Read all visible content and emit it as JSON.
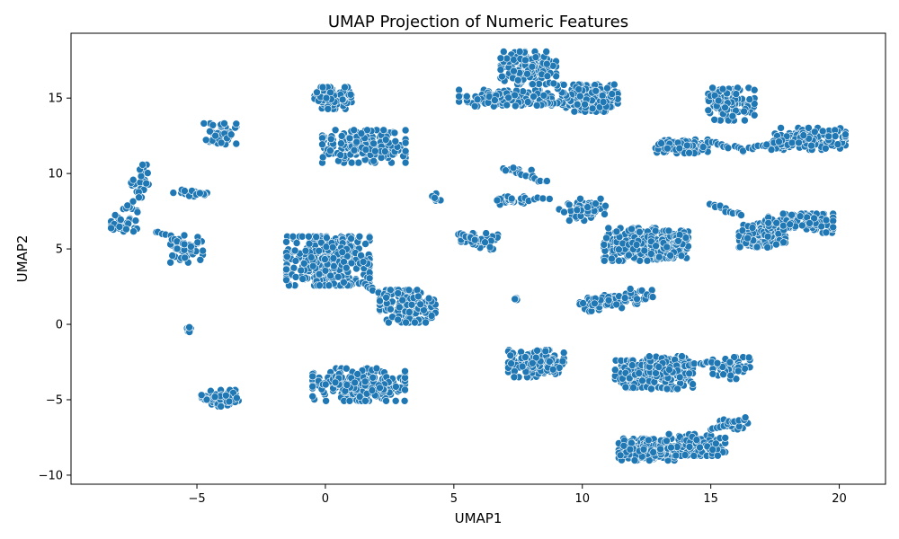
{
  "chart_data": {
    "type": "scatter",
    "title": "UMAP Projection of Numeric Features",
    "xlabel": "UMAP1",
    "ylabel": "UMAP2",
    "xlim": [
      -9.9,
      21.8
    ],
    "ylim": [
      -10.6,
      19.3
    ],
    "x_ticks": [
      -5,
      0,
      5,
      10,
      15,
      20
    ],
    "y_ticks": [
      -10,
      -5,
      0,
      5,
      10,
      15
    ],
    "x_tick_labels": [
      "−5",
      "0",
      "5",
      "10",
      "15",
      "20"
    ],
    "y_tick_labels": [
      "−10",
      "−5",
      "0",
      "5",
      "10",
      "15"
    ],
    "grid": false,
    "marker_color": "#1f77b4",
    "marker_edge_color": "#ffffff",
    "clusters": [
      {
        "center": [
          -7.8,
          6.7
        ],
        "spread": [
          0.3,
          0.3
        ],
        "n": 25
      },
      {
        "center": [
          -7.2,
          9.5
        ],
        "spread": [
          0.2,
          0.6
        ],
        "n": 25
      },
      {
        "center": [
          -7.5,
          7.8
        ],
        "spread": [
          0.3,
          0.2
        ],
        "n": 10
      },
      {
        "center": [
          -5.2,
          8.7
        ],
        "spread": [
          0.4,
          0.12
        ],
        "n": 25
      },
      {
        "center": [
          -5.4,
          5.0
        ],
        "spread": [
          0.35,
          0.5
        ],
        "n": 50
      },
      {
        "center": [
          -5.3,
          -0.4
        ],
        "spread": [
          0.08,
          0.12
        ],
        "n": 8
      },
      {
        "center": [
          -4.1,
          -4.9
        ],
        "spread": [
          0.4,
          0.3
        ],
        "n": 70
      },
      {
        "center": [
          -4.1,
          12.6
        ],
        "spread": [
          0.35,
          0.4
        ],
        "n": 50
      },
      {
        "center": [
          0.1,
          4.2
        ],
        "spread": [
          0.9,
          0.9
        ],
        "n": 400
      },
      {
        "center": [
          3.2,
          1.2
        ],
        "spread": [
          0.6,
          0.6
        ],
        "n": 150
      },
      {
        "center": [
          0.3,
          15.0
        ],
        "spread": [
          0.4,
          0.4
        ],
        "n": 100
      },
      {
        "center": [
          1.5,
          11.8
        ],
        "spread": [
          0.9,
          0.6
        ],
        "n": 200
      },
      {
        "center": [
          1.3,
          -4.0
        ],
        "spread": [
          1.0,
          0.6
        ],
        "n": 250
      },
      {
        "center": [
          4.3,
          8.4
        ],
        "spread": [
          0.1,
          0.2
        ],
        "n": 8
      },
      {
        "center": [
          6.0,
          5.5
        ],
        "spread": [
          0.4,
          0.3
        ],
        "n": 40
      },
      {
        "center": [
          7.0,
          15.0
        ],
        "spread": [
          1.0,
          0.3
        ],
        "n": 150
      },
      {
        "center": [
          7.9,
          17.0
        ],
        "spread": [
          0.6,
          0.6
        ],
        "n": 150
      },
      {
        "center": [
          10.3,
          15.0
        ],
        "spread": [
          0.6,
          0.5
        ],
        "n": 150
      },
      {
        "center": [
          7.0,
          8.2
        ],
        "spread": [
          0.4,
          0.15
        ],
        "n": 30
      },
      {
        "center": [
          7.3,
          10.2
        ],
        "spread": [
          0.4,
          0.1
        ],
        "n": 15
      },
      {
        "center": [
          10.0,
          7.6
        ],
        "spread": [
          0.5,
          0.4
        ],
        "n": 60
      },
      {
        "center": [
          12.1,
          5.3
        ],
        "spread": [
          0.7,
          0.6
        ],
        "n": 250
      },
      {
        "center": [
          13.4,
          5.3
        ],
        "spread": [
          0.4,
          0.5
        ],
        "n": 150
      },
      {
        "center": [
          7.4,
          1.7
        ],
        "spread": [
          0.1,
          0.08
        ],
        "n": 4
      },
      {
        "center": [
          10.8,
          1.4
        ],
        "spread": [
          0.5,
          0.3
        ],
        "n": 60
      },
      {
        "center": [
          12.2,
          1.9
        ],
        "spread": [
          0.3,
          0.3
        ],
        "n": 25
      },
      {
        "center": [
          8.2,
          -2.6
        ],
        "spread": [
          0.6,
          0.5
        ],
        "n": 150
      },
      {
        "center": [
          12.0,
          -3.3
        ],
        "spread": [
          0.4,
          0.5
        ],
        "n": 100
      },
      {
        "center": [
          13.4,
          -3.2
        ],
        "spread": [
          0.5,
          0.6
        ],
        "n": 150
      },
      {
        "center": [
          15.8,
          -2.9
        ],
        "spread": [
          0.4,
          0.4
        ],
        "n": 60
      },
      {
        "center": [
          12.5,
          -8.3
        ],
        "spread": [
          0.6,
          0.4
        ],
        "n": 200
      },
      {
        "center": [
          14.3,
          -8.0
        ],
        "spread": [
          0.7,
          0.4
        ],
        "n": 150
      },
      {
        "center": [
          15.9,
          -6.6
        ],
        "spread": [
          0.3,
          0.2
        ],
        "n": 25
      },
      {
        "center": [
          15.8,
          14.6
        ],
        "spread": [
          0.5,
          0.6
        ],
        "n": 120
      },
      {
        "center": [
          13.8,
          11.8
        ],
        "spread": [
          0.6,
          0.25
        ],
        "n": 100
      },
      {
        "center": [
          18.8,
          12.3
        ],
        "spread": [
          0.8,
          0.4
        ],
        "n": 150
      },
      {
        "center": [
          17.0,
          6.0
        ],
        "spread": [
          0.5,
          0.5
        ],
        "n": 120
      },
      {
        "center": [
          18.5,
          6.7
        ],
        "spread": [
          0.7,
          0.35
        ],
        "n": 120
      }
    ],
    "trails": [
      {
        "from": [
          -6.6,
          6.2
        ],
        "to": [
          -5.5,
          5.3
        ],
        "n": 10
      },
      {
        "from": [
          1.4,
          2.8
        ],
        "to": [
          2.4,
          1.8
        ],
        "n": 12
      },
      {
        "from": [
          9.2,
          14.7
        ],
        "to": [
          8.3,
          14.6
        ],
        "n": 10
      },
      {
        "from": [
          7.6,
          10.0
        ],
        "to": [
          8.6,
          9.4
        ],
        "n": 10
      },
      {
        "from": [
          7.6,
          8.3
        ],
        "to": [
          8.8,
          8.3
        ],
        "n": 8
      },
      {
        "from": [
          5.2,
          6.0
        ],
        "to": [
          5.8,
          5.6
        ],
        "n": 8
      },
      {
        "from": [
          15.0,
          8.0
        ],
        "to": [
          16.2,
          7.2
        ],
        "n": 12
      },
      {
        "from": [
          15.0,
          12.1
        ],
        "to": [
          16.2,
          11.6
        ],
        "n": 10
      },
      {
        "from": [
          16.2,
          11.5
        ],
        "to": [
          17.6,
          12.1
        ],
        "n": 12
      },
      {
        "from": [
          14.0,
          -2.7
        ],
        "to": [
          15.2,
          -2.5
        ],
        "n": 10
      },
      {
        "from": [
          15.0,
          -7.0
        ],
        "to": [
          16.3,
          -6.2
        ],
        "n": 12
      },
      {
        "from": [
          9.6,
          14.8
        ],
        "to": [
          8.9,
          16.0
        ],
        "n": 8
      }
    ]
  }
}
